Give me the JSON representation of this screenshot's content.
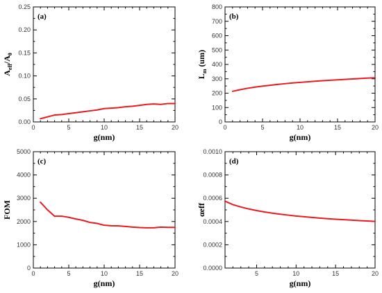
{
  "colors": {
    "series": "#e8191f",
    "axis": "#000000"
  },
  "chart_data": [
    {
      "panel_label": "(a)",
      "type": "line",
      "xlabel": "g(nm)",
      "ylabel": {
        "main": "A",
        "sub1": "eff",
        "mid": "/A",
        "sub2": "0"
      },
      "xlim": [
        0,
        20
      ],
      "ylim": [
        0,
        0.25
      ],
      "xticks": [
        0,
        5,
        10,
        15,
        20
      ],
      "yticks": [
        0.0,
        0.05,
        0.1,
        0.15,
        0.2,
        0.25
      ],
      "xtick_labels": [
        "0",
        "5",
        "10",
        "15",
        "20"
      ],
      "ytick_labels": [
        "0.00",
        "0.05",
        "0.10",
        "0.15",
        "0.20",
        "0.25"
      ],
      "series": [
        {
          "x": [
            1,
            2,
            3,
            4,
            5,
            6,
            7,
            8,
            9,
            10,
            11,
            12,
            13,
            14,
            15,
            16,
            17,
            18,
            19,
            20
          ],
          "y": [
            0.007,
            0.011,
            0.015,
            0.016,
            0.018,
            0.02,
            0.022,
            0.024,
            0.026,
            0.029,
            0.03,
            0.031,
            0.033,
            0.034,
            0.036,
            0.038,
            0.039,
            0.038,
            0.04,
            0.04
          ]
        }
      ]
    },
    {
      "panel_label": "(b)",
      "type": "line",
      "xlabel": "g(nm)",
      "ylabel": {
        "main": "L",
        "sub1": "m",
        "mid": " (um)",
        "sub2": ""
      },
      "xlim": [
        0,
        20
      ],
      "ylim": [
        0,
        800
      ],
      "xticks": [
        0,
        5,
        10,
        15,
        20
      ],
      "yticks": [
        0,
        100,
        200,
        300,
        400,
        500,
        600,
        700,
        800
      ],
      "xtick_labels": [
        "0",
        "5",
        "10",
        "15",
        "20"
      ],
      "ytick_labels": [
        "0",
        "100",
        "200",
        "300",
        "400",
        "500",
        "600",
        "700",
        "800"
      ],
      "series": [
        {
          "x": [
            1,
            2,
            3,
            4,
            5,
            6,
            7,
            8,
            9,
            10,
            11,
            12,
            13,
            14,
            15,
            16,
            17,
            18,
            19,
            20
          ],
          "y": [
            213,
            224,
            234,
            242,
            249,
            255,
            261,
            266,
            271,
            275,
            279,
            283,
            287,
            290,
            293,
            296,
            299,
            302,
            305,
            307
          ]
        }
      ]
    },
    {
      "panel_label": "(c)",
      "type": "line",
      "xlabel": "g(nm)",
      "ylabel": {
        "main": "FOM",
        "sub1": "",
        "mid": "",
        "sub2": ""
      },
      "xlim": [
        0,
        20
      ],
      "ylim": [
        0,
        5000
      ],
      "xticks": [
        0,
        5,
        10,
        15,
        20
      ],
      "yticks": [
        0,
        1000,
        2000,
        3000,
        4000,
        5000
      ],
      "xtick_labels": [
        "0",
        "5",
        "10",
        "15",
        "20"
      ],
      "ytick_labels": [
        "0",
        "1000",
        "2000",
        "3000",
        "4000",
        "5000"
      ],
      "series": [
        {
          "x": [
            1,
            2,
            3,
            4,
            5,
            6,
            7,
            8,
            9,
            10,
            11,
            12,
            13,
            14,
            15,
            16,
            17,
            18,
            19,
            20
          ],
          "y": [
            2830,
            2500,
            2230,
            2230,
            2180,
            2110,
            2050,
            1960,
            1920,
            1840,
            1820,
            1810,
            1790,
            1760,
            1740,
            1730,
            1730,
            1760,
            1750,
            1750
          ]
        }
      ]
    },
    {
      "panel_label": "(d)",
      "type": "line",
      "xlabel": "g(nm)",
      "ylabel": {
        "main": "αeff",
        "sub1": "",
        "mid": "",
        "sub2": ""
      },
      "xlim": [
        1,
        20
      ],
      "ylim": [
        0,
        0.001
      ],
      "xticks": [
        5,
        10,
        15,
        20
      ],
      "yticks": [
        0,
        0.0002,
        0.0004,
        0.0006,
        0.0008,
        0.001
      ],
      "xtick_labels": [
        "5",
        "10",
        "15",
        "20"
      ],
      "ytick_labels": [
        "0.0000",
        "0.0002",
        "0.0004",
        "0.0006",
        "0.0008",
        "0.0010"
      ],
      "series": [
        {
          "x": [
            1,
            2,
            3,
            4,
            5,
            6,
            7,
            8,
            9,
            10,
            11,
            12,
            13,
            14,
            15,
            16,
            17,
            18,
            19,
            20
          ],
          "y": [
            0.000575,
            0.000545,
            0.000525,
            0.000508,
            0.000494,
            0.000482,
            0.000472,
            0.000463,
            0.000455,
            0.000447,
            0.000441,
            0.000435,
            0.000429,
            0.000424,
            0.00042,
            0.000416,
            0.000412,
            0.000408,
            0.000405,
            0.000401
          ]
        }
      ]
    }
  ]
}
